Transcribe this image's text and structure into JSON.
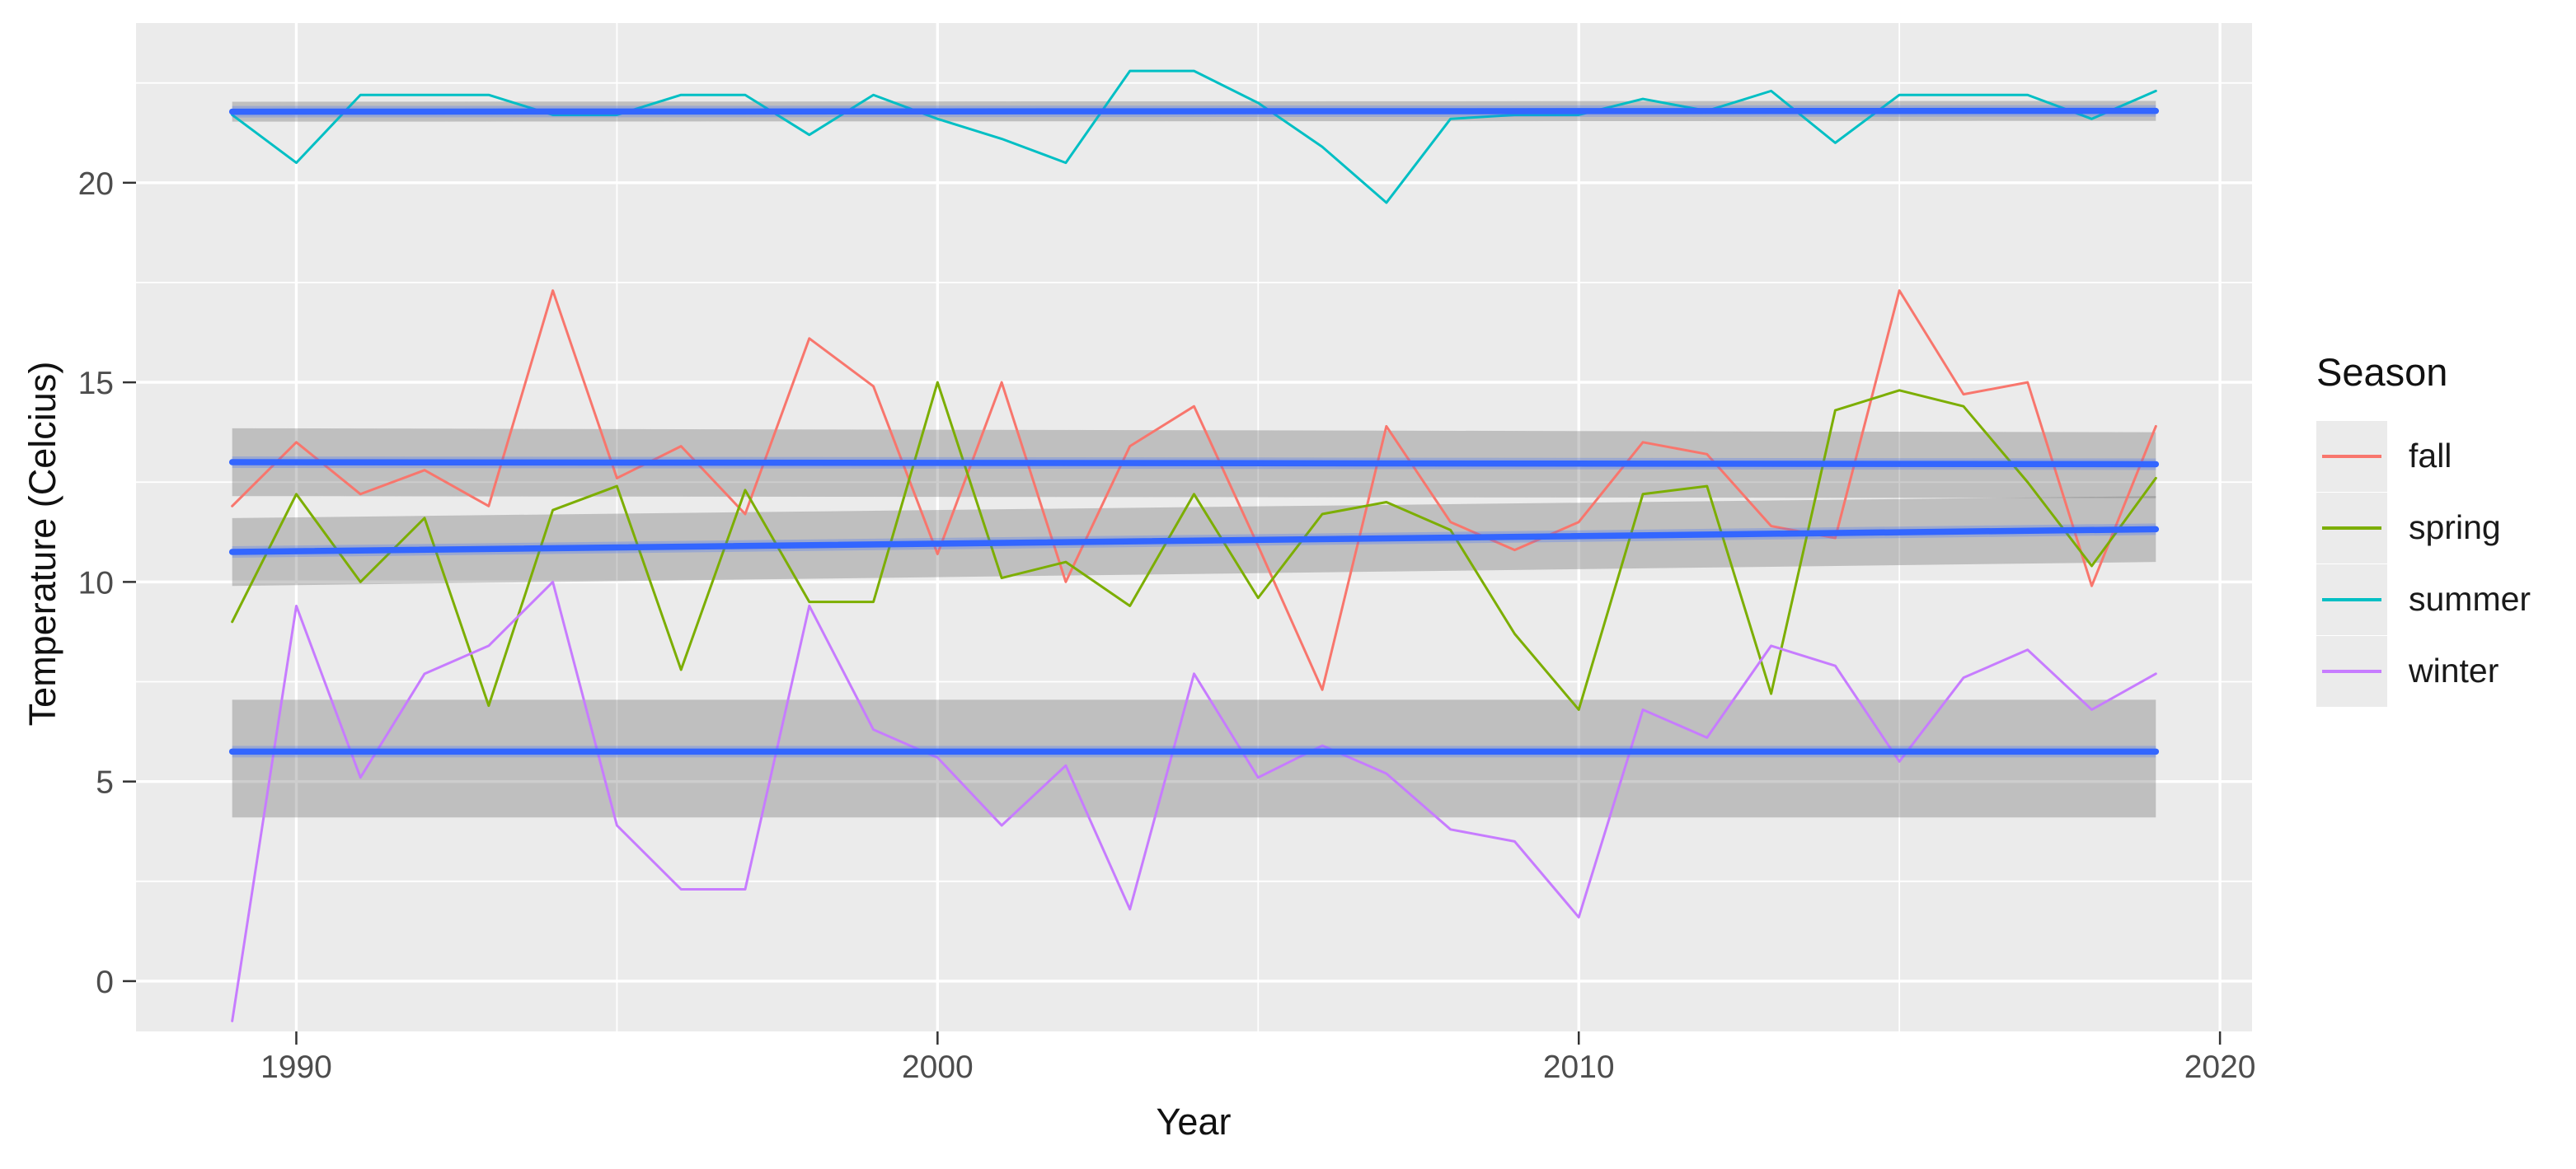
{
  "legend": {
    "title": "Season",
    "entries": [
      {
        "label": "fall",
        "color": "#F8766D"
      },
      {
        "label": "spring",
        "color": "#7CAE00"
      },
      {
        "label": "summer",
        "color": "#00BFC4"
      },
      {
        "label": "winter",
        "color": "#C77CFF"
      }
    ]
  },
  "chart_data": {
    "type": "line",
    "title": "",
    "xlabel": "Year",
    "ylabel": "Temperature (Celcius)",
    "xlim": [
      1987.5,
      2020.5
    ],
    "ylim": [
      -1.26,
      24.0
    ],
    "x_ticks": [
      1990,
      2000,
      2010,
      2020
    ],
    "x_minor_ticks": [
      1995,
      2005,
      2015
    ],
    "y_ticks": [
      0,
      5,
      10,
      15,
      20
    ],
    "y_minor_ticks": [
      2.5,
      7.5,
      12.5,
      17.5,
      22.5
    ],
    "grid": true,
    "legend_position": "right",
    "years": [
      1989,
      1990,
      1991,
      1992,
      1993,
      1994,
      1995,
      1996,
      1997,
      1998,
      1999,
      2000,
      2001,
      2002,
      2003,
      2004,
      2005,
      2006,
      2007,
      2008,
      2009,
      2010,
      2011,
      2012,
      2013,
      2014,
      2015,
      2016,
      2017,
      2018,
      2019
    ],
    "series": [
      {
        "name": "fall",
        "color": "#F8766D",
        "values": [
          11.9,
          13.5,
          12.2,
          12.8,
          11.9,
          17.3,
          12.6,
          13.4,
          11.7,
          16.1,
          14.9,
          10.7,
          15.0,
          10.0,
          13.4,
          14.4,
          10.9,
          7.3,
          13.9,
          11.5,
          10.8,
          11.5,
          13.5,
          13.2,
          11.4,
          11.1,
          17.3,
          14.7,
          15.0,
          9.9,
          13.9
        ]
      },
      {
        "name": "spring",
        "color": "#7CAE00",
        "values": [
          9.0,
          12.2,
          10.0,
          11.6,
          6.9,
          11.8,
          12.4,
          7.8,
          12.3,
          9.5,
          9.5,
          15.0,
          10.1,
          10.5,
          9.4,
          12.2,
          9.6,
          11.7,
          12.0,
          11.3,
          8.7,
          6.8,
          12.2,
          12.4,
          7.2,
          14.3,
          14.8,
          14.4,
          12.5,
          10.4,
          12.6
        ]
      },
      {
        "name": "summer",
        "color": "#00BFC4",
        "values": [
          21.7,
          20.5,
          22.2,
          22.2,
          22.2,
          21.7,
          21.7,
          22.2,
          22.2,
          21.2,
          22.2,
          21.6,
          21.1,
          20.5,
          22.8,
          22.8,
          22.0,
          20.9,
          19.5,
          21.6,
          21.7,
          21.7,
          22.1,
          21.8,
          22.3,
          21.0,
          22.2,
          22.2,
          22.2,
          21.6,
          22.3
        ]
      },
      {
        "name": "winter",
        "color": "#C77CFF",
        "values": [
          -1.0,
          9.4,
          5.1,
          7.7,
          8.4,
          10.0,
          3.9,
          2.3,
          2.3,
          9.4,
          6.3,
          5.6,
          3.9,
          5.4,
          1.8,
          7.7,
          5.1,
          5.9,
          5.2,
          3.8,
          3.5,
          1.6,
          6.8,
          6.1,
          8.4,
          7.9,
          5.5,
          7.6,
          8.3,
          6.8,
          7.7
        ]
      }
    ],
    "trends": [
      {
        "series": "fall",
        "line": [
          13.0,
          12.95
        ],
        "ci_top": [
          13.85,
          13.75
        ],
        "ci_bottom": [
          12.15,
          12.1
        ]
      },
      {
        "series": "spring",
        "line": [
          10.75,
          11.32
        ],
        "ci_top": [
          11.6,
          12.15
        ],
        "ci_bottom": [
          9.9,
          10.5
        ]
      },
      {
        "series": "summer",
        "line": [
          21.78,
          21.8
        ],
        "ci_top": [
          22.03,
          22.05
        ],
        "ci_bottom": [
          21.53,
          21.55
        ]
      },
      {
        "series": "winter",
        "line": [
          5.75,
          5.75
        ],
        "ci_top": [
          7.05,
          7.05
        ],
        "ci_bottom": [
          4.1,
          4.1
        ]
      }
    ],
    "style": {
      "panel_bg": "#EBEBEB",
      "grid_color": "#FFFFFF",
      "band_fill": "rgba(100,100,100,0.32)",
      "trend_color": "#3366FF",
      "tick_color": "#333333",
      "tick_label_color": "#4D4D4D"
    }
  }
}
